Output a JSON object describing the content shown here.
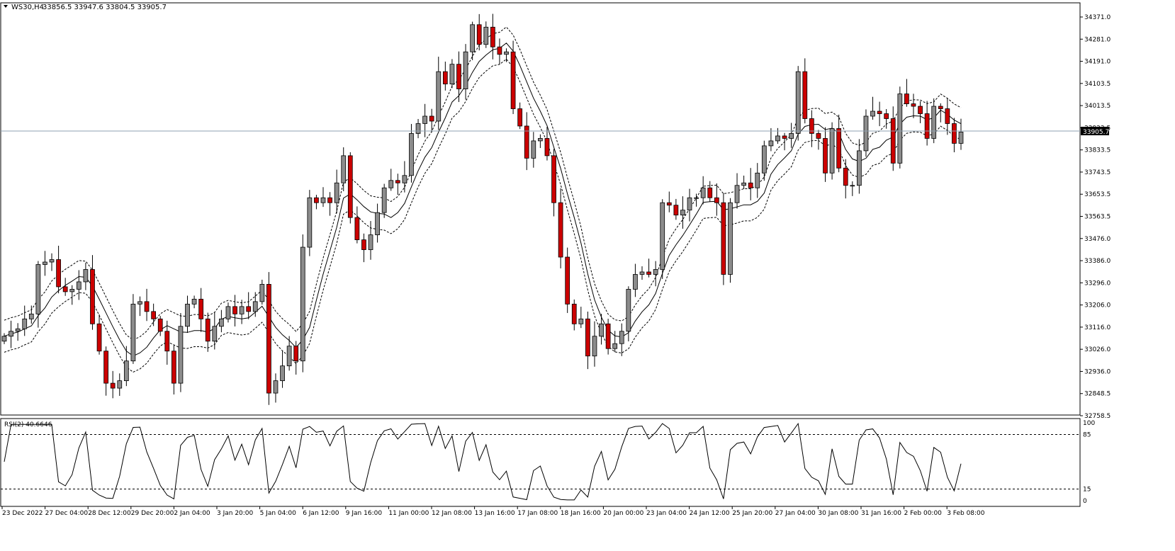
{
  "header": {
    "symbol_label": "WS30,H4",
    "ohlc_label": "33856.5 33947.6 33804.5 33905.7"
  },
  "price_axis": {
    "ticks": [
      "34371.0",
      "34281.0",
      "34191.0",
      "34103.5",
      "34013.5",
      "33923.5",
      "33833.5",
      "33743.5",
      "33653.5",
      "33563.5",
      "33476.0",
      "33386.0",
      "33296.0",
      "33206.0",
      "33116.0",
      "33026.0",
      "32936.0",
      "32848.5",
      "32758.5"
    ],
    "current_price_label": "33905.7"
  },
  "rsi": {
    "label": "RSI(2) 40.6646",
    "ticks": [
      "100",
      "85",
      "15",
      "0"
    ],
    "levels": [
      85,
      15
    ]
  },
  "time_axis": {
    "labels": [
      "23 Dec 2022",
      "27 Dec 04:00",
      "28 Dec 12:00",
      "29 Dec 20:00",
      "2 Jan 04:00",
      "3 Jan 20:00",
      "5 Jan 04:00",
      "6 Jan 12:00",
      "9 Jan 16:00",
      "11 Jan 00:00",
      "12 Jan 08:00",
      "13 Jan 16:00",
      "17 Jan 08:00",
      "18 Jan 16:00",
      "20 Jan 00:00",
      "23 Jan 04:00",
      "24 Jan 12:00",
      "25 Jan 20:00",
      "27 Jan 04:00",
      "30 Jan 08:00",
      "31 Jan 16:00",
      "2 Feb 00:00",
      "3 Feb 08:00"
    ]
  },
  "colors": {
    "bull": "#8c8c8c",
    "bear": "#cc0000",
    "wick": "#000000",
    "price_line": "#8ea0b0"
  },
  "chart_data": {
    "type": "candlestick",
    "symbol": "WS30",
    "timeframe": "H4",
    "current_price": 33905.7,
    "ylim": [
      32758.5,
      34371.0
    ],
    "rsi_period": 2,
    "rsi_value": 40.6646,
    "close_series_approx": [
      33080,
      33100,
      33110,
      33150,
      33170,
      33370,
      33380,
      33390,
      33280,
      33260,
      33270,
      33300,
      33350,
      33130,
      33020,
      32890,
      32870,
      32900,
      32980,
      33210,
      33220,
      33180,
      33150,
      33100,
      33020,
      32890,
      33120,
      33210,
      33230,
      33150,
      33060,
      33120,
      33150,
      33200,
      33170,
      33200,
      33180,
      33220,
      33290,
      32850,
      32900,
      32960,
      33040,
      32980,
      33440,
      33640,
      33620,
      33640,
      33620,
      33700,
      33810,
      33560,
      33470,
      33430,
      33490,
      33580,
      33680,
      33710,
      33700,
      33730,
      33900,
      33940,
      33970,
      33950,
      34150,
      34100,
      34180,
      34080,
      34230,
      34340,
      34260,
      34330,
      34250,
      34220,
      34230,
      34000,
      33930,
      33800,
      33870,
      33880,
      33810,
      33620,
      33400,
      33210,
      33130,
      33150,
      33000,
      33080,
      33130,
      33030,
      33050,
      33100,
      33270,
      33330,
      33340,
      33330,
      33350,
      33620,
      33610,
      33570,
      33590,
      33640,
      33640,
      33680,
      33640,
      33620,
      33330,
      33620,
      33690,
      33700,
      33680,
      33740,
      33850,
      33870,
      33890,
      33880,
      33900,
      34150,
      33960,
      33900,
      33880,
      33740,
      33920,
      33760,
      33690,
      33690,
      33830,
      33970,
      33990,
      33980,
      33960,
      33780,
      34060,
      34020,
      34010,
      33980,
      33880,
      34010,
      34000,
      33940,
      33860,
      33905.7
    ]
  }
}
